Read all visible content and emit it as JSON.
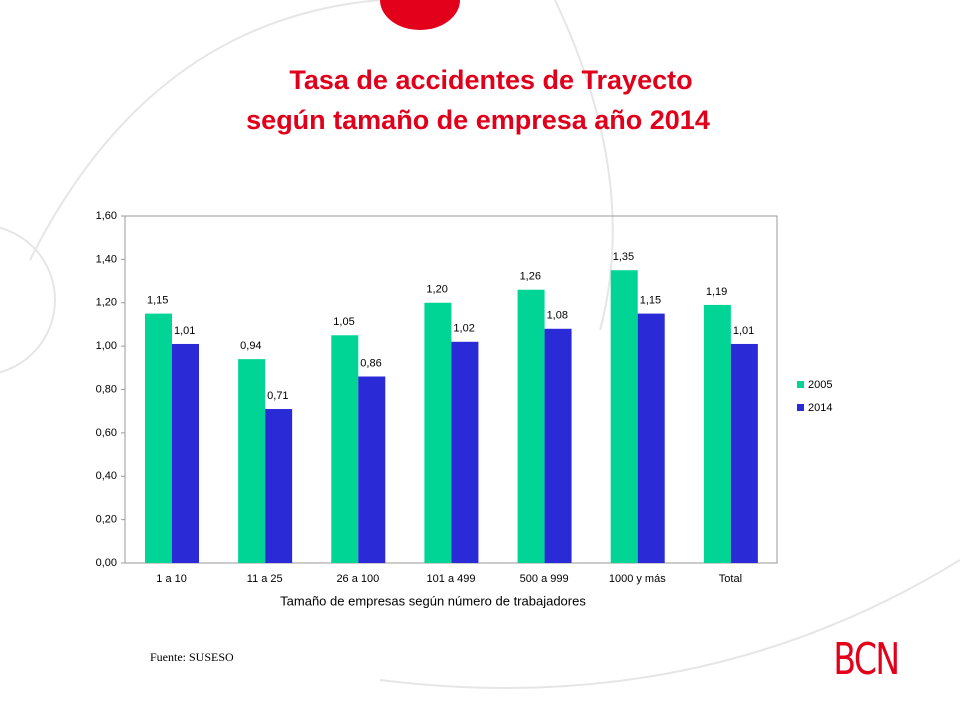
{
  "chart_data": {
    "type": "bar",
    "title_lines": [
      "Tasa de accidentes de Trayecto",
      "según tamaño de empresa año 2014"
    ],
    "x_label": "Tamaño de empresas según número de trabajadores",
    "categories": [
      "1 a 10",
      "11 a 25",
      "26 a 100",
      "101 a 499",
      "500 a 999",
      "1000 y más",
      "Total"
    ],
    "series": [
      {
        "name": "2005",
        "color": "#00d596",
        "values": [
          1.15,
          0.94,
          1.05,
          1.2,
          1.26,
          1.35,
          1.19
        ],
        "value_labels": [
          "1,15",
          "0,94",
          "1,05",
          "1,20",
          "1,26",
          "1,35",
          "1,19"
        ]
      },
      {
        "name": "2014",
        "color": "#2a2ad6",
        "values": [
          1.01,
          0.71,
          0.86,
          1.02,
          1.08,
          1.15,
          1.01
        ],
        "value_labels": [
          "1,01",
          "0,71",
          "0,86",
          "1,02",
          "1,08",
          "1,15",
          "1,01"
        ]
      }
    ],
    "ylim": [
      0,
      1.6
    ],
    "yticks": [
      {
        "value": 0,
        "label": "0,00"
      },
      {
        "value": 0.2,
        "label": "0,20"
      },
      {
        "value": 0.4,
        "label": "0,40"
      },
      {
        "value": 0.6,
        "label": "0,60"
      },
      {
        "value": 0.8,
        "label": "0,80"
      },
      {
        "value": 1.0,
        "label": "1,00"
      },
      {
        "value": 1.2,
        "label": "1,20"
      },
      {
        "value": 1.4,
        "label": "1,40"
      },
      {
        "value": 1.6,
        "label": "1,60"
      }
    ],
    "grid": false,
    "legend": "right"
  },
  "source": "Fuente: SUSESO",
  "logo": "BCN"
}
